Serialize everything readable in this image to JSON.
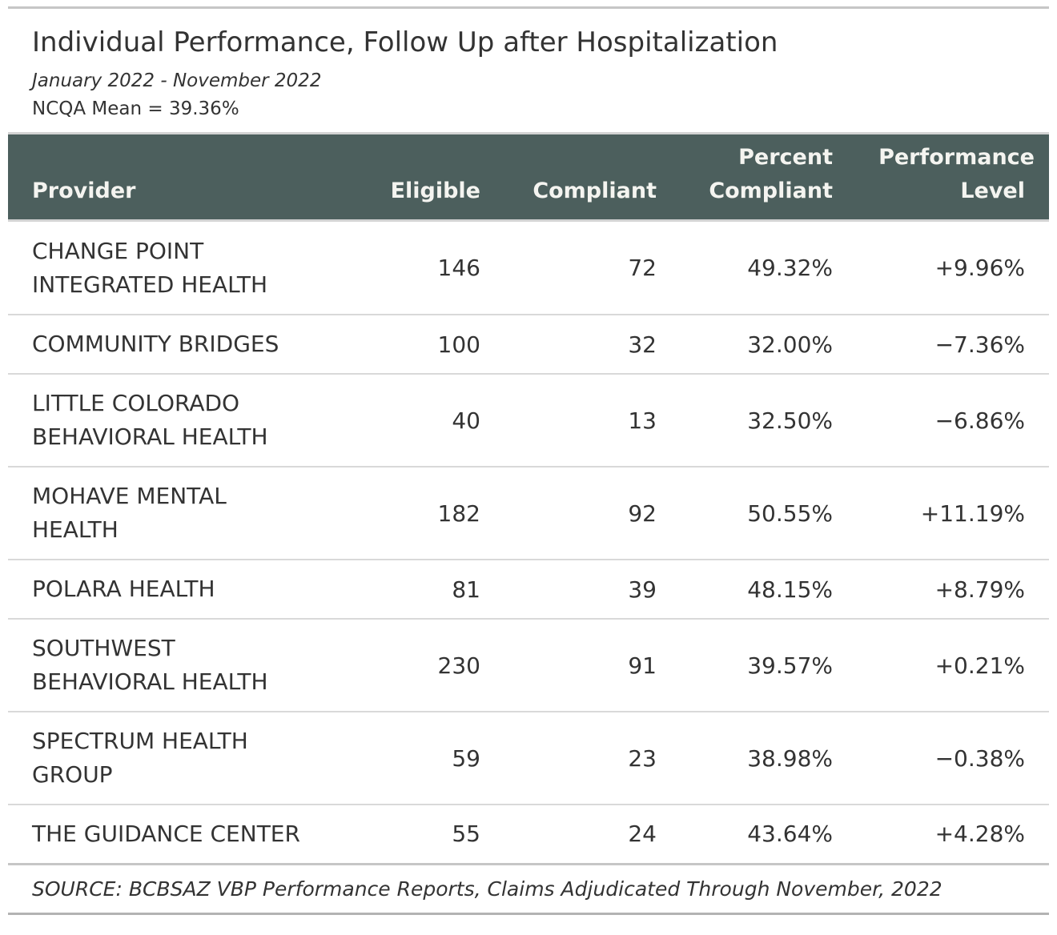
{
  "title": "Individual Performance, Follow Up after Hospitalization",
  "subtitle": "January 2022 - November 2022",
  "note": "NCQA Mean = 39.36%",
  "columns": {
    "provider": "Provider",
    "eligible": "Eligible",
    "compliant": "Compliant",
    "percent_line1": "Percent",
    "percent_line2": "Compliant",
    "performance_line1": "Performance",
    "performance_line2": "Level"
  },
  "rows": [
    {
      "provider_line1": "CHANGE POINT",
      "provider_line2": "INTEGRATED HEALTH",
      "eligible": "146",
      "compliant": "72",
      "percent": "49.32%",
      "performance": "+9.96%"
    },
    {
      "provider_line1": "COMMUNITY BRIDGES",
      "provider_line2": "",
      "eligible": "100",
      "compliant": "32",
      "percent": "32.00%",
      "performance": "−7.36%"
    },
    {
      "provider_line1": "LITTLE COLORADO",
      "provider_line2": "BEHAVIORAL HEALTH",
      "eligible": "40",
      "compliant": "13",
      "percent": "32.50%",
      "performance": "−6.86%"
    },
    {
      "provider_line1": "MOHAVE MENTAL",
      "provider_line2": "HEALTH",
      "eligible": "182",
      "compliant": "92",
      "percent": "50.55%",
      "performance": "+11.19%"
    },
    {
      "provider_line1": "POLARA HEALTH",
      "provider_line2": "",
      "eligible": "81",
      "compliant": "39",
      "percent": "48.15%",
      "performance": "+8.79%"
    },
    {
      "provider_line1": "SOUTHWEST",
      "provider_line2": "BEHAVIORAL HEALTH",
      "eligible": "230",
      "compliant": "91",
      "percent": "39.57%",
      "performance": "+0.21%"
    },
    {
      "provider_line1": "SPECTRUM HEALTH",
      "provider_line2": "GROUP",
      "eligible": "59",
      "compliant": "23",
      "percent": "38.98%",
      "performance": "−0.38%"
    },
    {
      "provider_line1": "THE GUIDANCE CENTER",
      "provider_line2": "",
      "eligible": "55",
      "compliant": "24",
      "percent": "43.64%",
      "performance": "+4.28%"
    }
  ],
  "footer": "SOURCE: BCBSAZ VBP Performance Reports, Claims Adjudicated Through November, 2022",
  "colors": {
    "header_bg": "#4c5f5d",
    "header_text": "#f4f4f0",
    "body_text": "#333333"
  }
}
